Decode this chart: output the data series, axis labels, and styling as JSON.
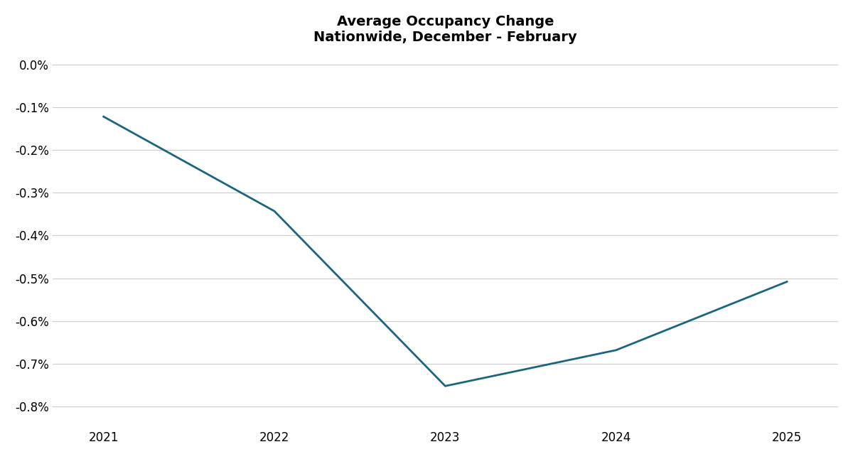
{
  "title_line1": "Average Occupancy Change",
  "title_line2": "Nationwide, December - February",
  "x_values": [
    2021,
    2022,
    2023,
    2024,
    2025
  ],
  "y_values": [
    -0.122,
    -0.343,
    -0.752,
    -0.668,
    -0.508
  ],
  "line_color": "#1a6680",
  "line_width": 2.0,
  "ylim": [
    -0.85,
    0.02
  ],
  "xlim": [
    2020.7,
    2025.3
  ],
  "yticks": [
    0.0,
    -0.1,
    -0.2,
    -0.3,
    -0.4,
    -0.5,
    -0.6,
    -0.7,
    -0.8
  ],
  "xticks": [
    2021,
    2022,
    2023,
    2024,
    2025
  ],
  "grid_color": "#cccccc",
  "background_color": "#ffffff",
  "title_fontsize": 14,
  "tick_fontsize": 12
}
